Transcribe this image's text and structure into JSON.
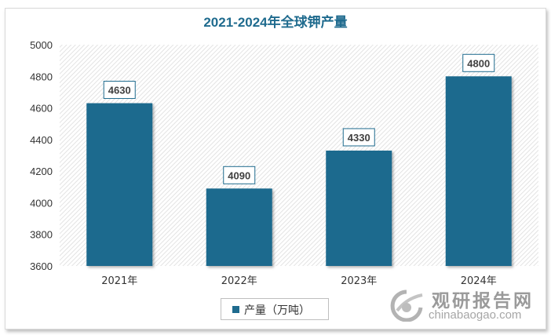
{
  "chart_data": {
    "type": "bar",
    "title": "2021-2024年全球钾产量",
    "categories": [
      "2021年",
      "2022年",
      "2023年",
      "2024年"
    ],
    "series": [
      {
        "name": "产量（万吨）",
        "values": [
          4630,
          4090,
          4330,
          4800
        ]
      }
    ],
    "ylim": [
      3600,
      5000
    ],
    "yticks": [
      3600,
      3800,
      4000,
      4200,
      4400,
      4600,
      4800,
      5000
    ],
    "xlabel": "",
    "ylabel": "",
    "legend_position": "bottom",
    "grid": false
  },
  "colors": {
    "bar": "#1f6b8e",
    "title": "#1f6b8e",
    "label_border": "#1f6b8e"
  },
  "watermark": {
    "icon": "chinabaogao-logo-icon",
    "cn": "观研报告网",
    "en": "chinabaogao.com"
  }
}
